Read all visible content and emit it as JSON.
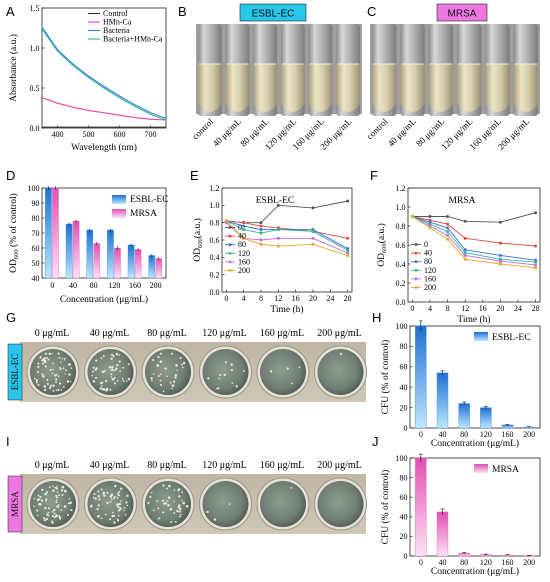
{
  "panel_labels": [
    "A",
    "B",
    "C",
    "D",
    "E",
    "F",
    "G",
    "H",
    "I",
    "J"
  ],
  "colors": {
    "control": "#333333",
    "hmn_ca": "#e6449a",
    "bacteria": "#3c7fd4",
    "bacteria_hmn": "#2fb59a",
    "esbl": "#3a9be0",
    "mrsa": "#e76fc0",
    "esbl_badge": "#27c6ea",
    "mrsa_badge": "#ee78e2",
    "series_0": "#555555",
    "series_40": "#e8453c",
    "series_80": "#3f6fd6",
    "series_120": "#2fb89a",
    "series_160": "#c46ce0",
    "series_200": "#e8a92c"
  },
  "tubes": {
    "esbl_badge": "ESBL-EC",
    "mrsa_badge": "MRSA",
    "labels": [
      "control",
      "40 μg/mL",
      "80 μg/mL",
      "120 μg/mL",
      "160 μg/mL",
      "200 μg/mL"
    ]
  },
  "plates": {
    "headers": [
      "0 μg/mL",
      "40 μg/mL",
      "80 μg/mL",
      "120 μg/mL",
      "160 μg/mL",
      "200 μg/mL"
    ],
    "side_esbl": "ESBL-EC",
    "side_mrsa": "MRSA"
  },
  "chart_data": [
    {
      "panel": "A",
      "type": "line",
      "xlabel": "Wavelength (nm)",
      "ylabel": "Absorbance (a.u.)",
      "xlim": [
        350,
        750
      ],
      "ylim": [
        0,
        1.5
      ],
      "xticks": [
        400,
        500,
        600,
        700
      ],
      "yticks": [
        0.0,
        0.5,
        1.0,
        1.5
      ],
      "legend": "top-right",
      "x": [
        350,
        400,
        450,
        500,
        550,
        600,
        650,
        700,
        750
      ],
      "series": [
        {
          "name": "Control",
          "values": [
            0.01,
            0.01,
            0.01,
            0.01,
            0.01,
            0.01,
            0.01,
            0.01,
            0.01
          ]
        },
        {
          "name": "HMn-Ca",
          "values": [
            0.38,
            0.31,
            0.26,
            0.22,
            0.19,
            0.16,
            0.13,
            0.11,
            0.1
          ]
        },
        {
          "name": "Bacteria",
          "values": [
            1.26,
            0.98,
            0.8,
            0.65,
            0.52,
            0.4,
            0.29,
            0.19,
            0.12
          ]
        },
        {
          "name": "Bacteria+HMn-Ca",
          "values": [
            1.24,
            0.96,
            0.78,
            0.63,
            0.5,
            0.38,
            0.27,
            0.17,
            0.1
          ]
        }
      ]
    },
    {
      "panel": "D",
      "type": "bar",
      "xlabel": "Concentration (μg/mL)",
      "ylabel": "OD600 (% of control)",
      "ylim": [
        40,
        100
      ],
      "yticks": [
        40,
        50,
        60,
        70,
        80,
        90,
        100
      ],
      "legend": "top-right",
      "categories": [
        "0",
        "40",
        "80",
        "120",
        "160",
        "200"
      ],
      "series": [
        {
          "name": "ESBL-EC",
          "values": [
            100,
            76,
            72,
            72,
            62,
            55
          ],
          "errors": [
            0.8,
            0.6,
            0.5,
            0.6,
            0.5,
            0.5
          ]
        },
        {
          "name": "MRSA",
          "values": [
            100,
            78,
            63,
            60,
            59,
            53
          ],
          "errors": [
            0.7,
            0.5,
            0.6,
            0.6,
            0.5,
            0.5
          ]
        }
      ]
    },
    {
      "panel": "E",
      "type": "line",
      "title": "ESBL-EC",
      "xlabel": "Time (h)",
      "ylabel": "OD600(a.u.)",
      "xlim": [
        -1,
        29
      ],
      "ylim": [
        0,
        1.2
      ],
      "xticks": [
        0,
        4,
        8,
        12,
        16,
        20,
        24,
        28
      ],
      "yticks": [
        0.0,
        0.2,
        0.4,
        0.6,
        0.8,
        1.0,
        1.2
      ],
      "legend": "center-left",
      "x": [
        0,
        4,
        8,
        12,
        20,
        28
      ],
      "series": [
        {
          "name": "0",
          "values": [
            0.82,
            0.8,
            0.8,
            1.0,
            0.97,
            1.05
          ]
        },
        {
          "name": "40",
          "values": [
            0.82,
            0.8,
            0.76,
            0.74,
            0.7,
            0.62
          ]
        },
        {
          "name": "80",
          "values": [
            0.82,
            0.76,
            0.72,
            0.72,
            0.72,
            0.5
          ]
        },
        {
          "name": "120",
          "values": [
            0.82,
            0.72,
            0.68,
            0.72,
            0.7,
            0.48
          ]
        },
        {
          "name": "160",
          "values": [
            0.8,
            0.62,
            0.6,
            0.62,
            0.62,
            0.45
          ]
        },
        {
          "name": "200",
          "values": [
            0.82,
            0.62,
            0.55,
            0.53,
            0.55,
            0.42
          ]
        }
      ]
    },
    {
      "panel": "F",
      "type": "line",
      "title": "MRSA",
      "xlabel": "Time (h)",
      "ylabel": "OD600(a.u.)",
      "xlim": [
        -1,
        29
      ],
      "ylim": [
        0,
        1.2
      ],
      "xticks": [
        0,
        4,
        8,
        12,
        16,
        20,
        24,
        28
      ],
      "yticks": [
        0.0,
        0.2,
        0.4,
        0.6,
        0.8,
        1.0,
        1.2
      ],
      "legend": "lower-left",
      "x": [
        0,
        4,
        8,
        12,
        20,
        28
      ],
      "series": [
        {
          "name": "0",
          "values": [
            0.9,
            0.9,
            0.9,
            0.85,
            0.84,
            0.94
          ]
        },
        {
          "name": "40",
          "values": [
            0.9,
            0.86,
            0.82,
            0.67,
            0.62,
            0.59
          ]
        },
        {
          "name": "80",
          "values": [
            0.9,
            0.84,
            0.78,
            0.55,
            0.49,
            0.44
          ]
        },
        {
          "name": "120",
          "values": [
            0.9,
            0.82,
            0.74,
            0.52,
            0.45,
            0.42
          ]
        },
        {
          "name": "160",
          "values": [
            0.9,
            0.8,
            0.7,
            0.49,
            0.43,
            0.39
          ]
        },
        {
          "name": "200",
          "values": [
            0.9,
            0.78,
            0.66,
            0.45,
            0.4,
            0.36
          ]
        }
      ]
    },
    {
      "panel": "H",
      "type": "bar",
      "xlabel": "Concentration (μg/mL)",
      "ylabel": "CFU (% of control)",
      "ylim": [
        0,
        100
      ],
      "yticks": [
        0,
        20,
        40,
        60,
        80,
        100
      ],
      "legend": "top-right",
      "categories": [
        "0",
        "40",
        "80",
        "120",
        "160",
        "200"
      ],
      "series": [
        {
          "name": "ESBL-EC",
          "values": [
            100,
            54,
            24,
            20,
            3,
            1
          ],
          "errors": [
            5,
            2,
            1.5,
            1.2,
            0.5,
            0.3
          ]
        }
      ]
    },
    {
      "panel": "J",
      "type": "bar",
      "xlabel": "Concentration (μg/mL)",
      "ylabel": "CFU (% of control)",
      "ylim": [
        0,
        100
      ],
      "yticks": [
        0,
        20,
        40,
        60,
        80,
        100
      ],
      "legend": "top-right",
      "categories": [
        "0",
        "40",
        "80",
        "120",
        "160",
        "200"
      ],
      "series": [
        {
          "name": "MRSA",
          "values": [
            100,
            45,
            3,
            1.5,
            1,
            0.5
          ],
          "errors": [
            4,
            3,
            0.6,
            0.4,
            0.3,
            0.2
          ]
        }
      ]
    }
  ]
}
